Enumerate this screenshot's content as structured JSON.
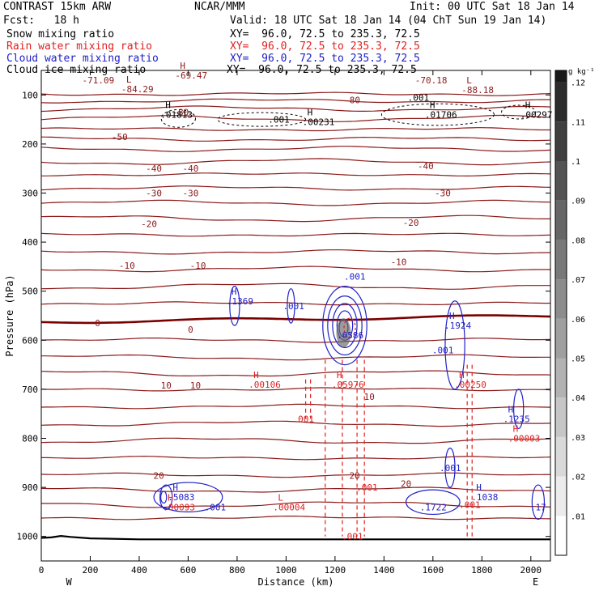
{
  "header": {
    "model": "CONTRAST 15km ARW",
    "org": "NCAR/MMM",
    "init": "Init: 00 UTC Sat 18 Jan 14",
    "fcst": "Fcst:   18 h",
    "valid": "Valid: 18 UTC Sat 18 Jan 14 (04 ChT Sun 19 Jan 14)",
    "fields": [
      {
        "label": "Snow mixing ratio",
        "xy": "XY=  96.0, 72.5 to 235.3, 72.5",
        "color": "#000000"
      },
      {
        "label": "Rain water mixing ratio",
        "xy": "XY=  96.0, 72.5 to 235.3, 72.5",
        "color": "#e02020"
      },
      {
        "label": "Cloud water mixing ratio",
        "xy": "XY=  96.0, 72.5 to 235.3, 72.5",
        "color": "#2020c8"
      },
      {
        "label": "Cloud ice mixing ratio",
        "xy": "XY=  96.0, 72.5 to 235.3, 72.5",
        "color": "#000000"
      }
    ]
  },
  "chart_data": {
    "type": "contour-cross-section",
    "xlabel": "Distance (km)",
    "ylabel": "Pressure (hPa)",
    "xlim": [
      0,
      2080
    ],
    "ylim": [
      1050,
      50
    ],
    "x_ticks": [
      0,
      200,
      400,
      600,
      800,
      1000,
      1200,
      1400,
      1600,
      1800,
      2000
    ],
    "y_ticks": [
      100,
      200,
      300,
      400,
      500,
      600,
      700,
      800,
      900,
      1000
    ],
    "x_end_labels": [
      "W",
      "E"
    ],
    "colorbar": {
      "unit": "g kg⁻¹",
      "ticks": [
        ".01",
        ".02",
        ".03",
        ".04",
        ".05",
        ".06",
        ".07",
        ".08",
        ".09",
        ".1",
        ".11",
        ".12"
      ]
    },
    "temperature_labels": [
      {
        "text": "-80",
        "x": 1270,
        "p": 110
      },
      {
        "text": "-80",
        "x": 570,
        "p": 135
      },
      {
        "text": "-50",
        "x": 320,
        "p": 185
      },
      {
        "text": "-40",
        "x": 460,
        "p": 250
      },
      {
        "text": "-40",
        "x": 610,
        "p": 250
      },
      {
        "text": "-40",
        "x": 1570,
        "p": 245
      },
      {
        "text": "-30",
        "x": 460,
        "p": 300
      },
      {
        "text": "-30",
        "x": 610,
        "p": 300
      },
      {
        "text": "-30",
        "x": 1640,
        "p": 300
      },
      {
        "text": "-20",
        "x": 440,
        "p": 363
      },
      {
        "text": "-20",
        "x": 1510,
        "p": 360
      },
      {
        "text": "-10",
        "x": 350,
        "p": 448
      },
      {
        "text": "-10",
        "x": 640,
        "p": 448
      },
      {
        "text": "-10",
        "x": 1460,
        "p": 440
      },
      {
        "text": "0",
        "x": 230,
        "p": 565
      },
      {
        "text": "0",
        "x": 610,
        "p": 578
      },
      {
        "text": "10",
        "x": 510,
        "p": 692
      },
      {
        "text": "10",
        "x": 630,
        "p": 692
      },
      {
        "text": "10",
        "x": 1340,
        "p": 715
      },
      {
        "text": "20",
        "x": 480,
        "p": 876
      },
      {
        "text": "20",
        "x": 1280,
        "p": 876
      },
      {
        "text": "20",
        "x": 1490,
        "p": 892
      }
    ],
    "extrema_labels": [
      {
        "mark": "H",
        "text": "-69.47",
        "x": 580,
        "p": 60,
        "color": "#8b1a1a"
      },
      {
        "mark": "",
        "text": "-71.09",
        "x": 200,
        "p": 70,
        "color": "#8b1a1a"
      },
      {
        "mark": "L",
        "text": "-84.29",
        "x": 360,
        "p": 88,
        "color": "#8b1a1a"
      },
      {
        "mark": "",
        "text": "-70.18",
        "x": 1560,
        "p": 70,
        "color": "#8b1a1a"
      },
      {
        "mark": "L",
        "text": "-88.18",
        "x": 1750,
        "p": 90,
        "color": "#8b1a1a"
      },
      {
        "mark": "H",
        "text": ".01813",
        "x": 520,
        "p": 140,
        "color": "#000000"
      },
      {
        "mark": "H",
        "text": ".00231",
        "x": 1100,
        "p": 155,
        "color": "#000000"
      },
      {
        "mark": "",
        "text": ".001",
        "x": 960,
        "p": 150,
        "color": "#000000"
      },
      {
        "mark": "",
        "text": ".001",
        "x": 1530,
        "p": 105,
        "color": "#000000"
      },
      {
        "mark": "H",
        "text": ".01706",
        "x": 1600,
        "p": 140,
        "color": "#000000"
      },
      {
        "mark": "H",
        "text": ".00297",
        "x": 1990,
        "p": 140,
        "color": "#000000"
      },
      {
        "mark": "H",
        "text": ".1369",
        "x": 790,
        "p": 520,
        "color": "#2020c8"
      },
      {
        "mark": "",
        "text": ".001",
        "x": 1020,
        "p": 530,
        "color": "#2020c8"
      },
      {
        "mark": "",
        "text": ".001",
        "x": 1270,
        "p": 470,
        "color": "#2020c8"
      },
      {
        "mark": "",
        "text": ".6586",
        "x": 1240,
        "p": 590,
        "color": "#2020c8"
      },
      {
        "mark": "H",
        "text": ".1924",
        "x": 1680,
        "p": 570,
        "color": "#2020c8"
      },
      {
        "mark": "",
        "text": ".001",
        "x": 1630,
        "p": 620,
        "color": "#2020c8"
      },
      {
        "mark": "H",
        "text": ".00106",
        "x": 880,
        "p": 690,
        "color": "#e02020"
      },
      {
        "mark": "",
        "text": ".001",
        "x": 1060,
        "p": 760,
        "color": "#e02020"
      },
      {
        "mark": "H",
        "text": ".05976",
        "x": 1220,
        "p": 690,
        "color": "#e02020"
      },
      {
        "mark": "H",
        "text": ".00250",
        "x": 1720,
        "p": 690,
        "color": "#e02020"
      },
      {
        "mark": "H",
        "text": ".1235",
        "x": 1920,
        "p": 760,
        "color": "#2020c8"
      },
      {
        "mark": "H",
        "text": ".00003",
        "x": 1940,
        "p": 800,
        "color": "#e02020"
      },
      {
        "mark": "",
        "text": ".001",
        "x": 1660,
        "p": 860,
        "color": "#2020c8"
      },
      {
        "mark": "H",
        "text": ".5083",
        "x": 550,
        "p": 920,
        "color": "#2020c8"
      },
      {
        "mark": "H",
        "text": ".00093",
        "x": 530,
        "p": 940,
        "color": "#e02020"
      },
      {
        "mark": "",
        "text": ".001",
        "x": 700,
        "p": 940,
        "color": "#2020c8"
      },
      {
        "mark": "L",
        "text": ".00004",
        "x": 980,
        "p": 940,
        "color": "#e02020"
      },
      {
        "mark": "",
        "text": ".001",
        "x": 1320,
        "p": 900,
        "color": "#e02020"
      },
      {
        "mark": "",
        "text": ".001",
        "x": 1260,
        "p": 1000,
        "color": "#e02020"
      },
      {
        "mark": "",
        "text": ".1722",
        "x": 1580,
        "p": 940,
        "color": "#2020c8"
      },
      {
        "mark": "",
        "text": ".001",
        "x": 1740,
        "p": 935,
        "color": "#e02020"
      },
      {
        "mark": "H",
        "text": ".1038",
        "x": 1790,
        "p": 920,
        "color": "#2020c8"
      },
      {
        "mark": "",
        "text": ".17",
        "x": 2030,
        "p": 940,
        "color": "#2020c8"
      }
    ],
    "surface_pressure": [
      [
        0,
        1003
      ],
      [
        40,
        1002
      ],
      [
        80,
        999
      ],
      [
        120,
        1001
      ],
      [
        200,
        1004
      ],
      [
        400,
        1006
      ],
      [
        800,
        1006
      ],
      [
        1200,
        1006
      ],
      [
        1600,
        1006
      ],
      [
        2080,
        1006
      ]
    ],
    "colors": {
      "isotherm": "#8b1a1a",
      "freezing_level": "#7a0000",
      "snow": "#000000",
      "rain": "#e02020",
      "cloud_water": "#2020c8"
    }
  }
}
